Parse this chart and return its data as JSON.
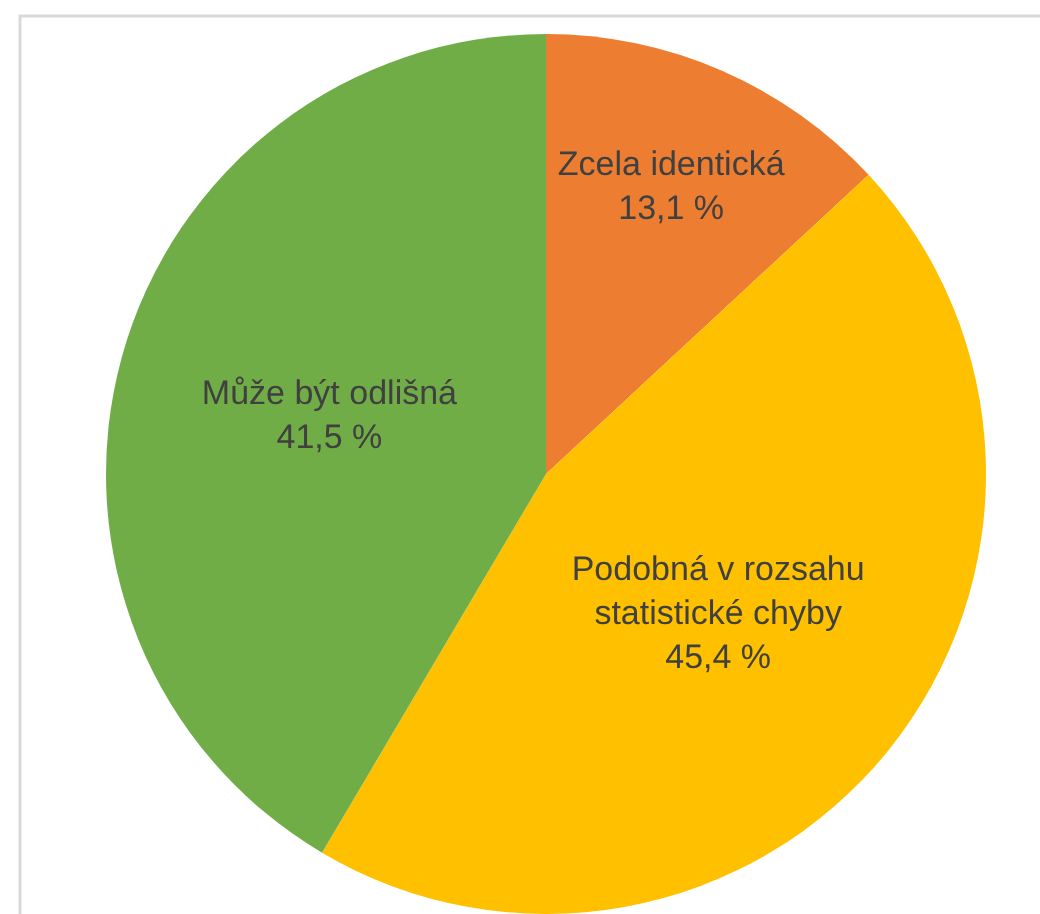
{
  "chart_data": {
    "type": "pie",
    "categories": [
      "Zcela identická",
      "Podobná v rozsahu statistické chyby",
      "Může být odlišná"
    ],
    "values": [
      13.1,
      45.4,
      41.5
    ],
    "colors": [
      "#ed7d31",
      "#ffc000",
      "#70ad47"
    ],
    "value_labels": [
      "13,1 %",
      "45,4 %",
      "41,5 %"
    ]
  }
}
